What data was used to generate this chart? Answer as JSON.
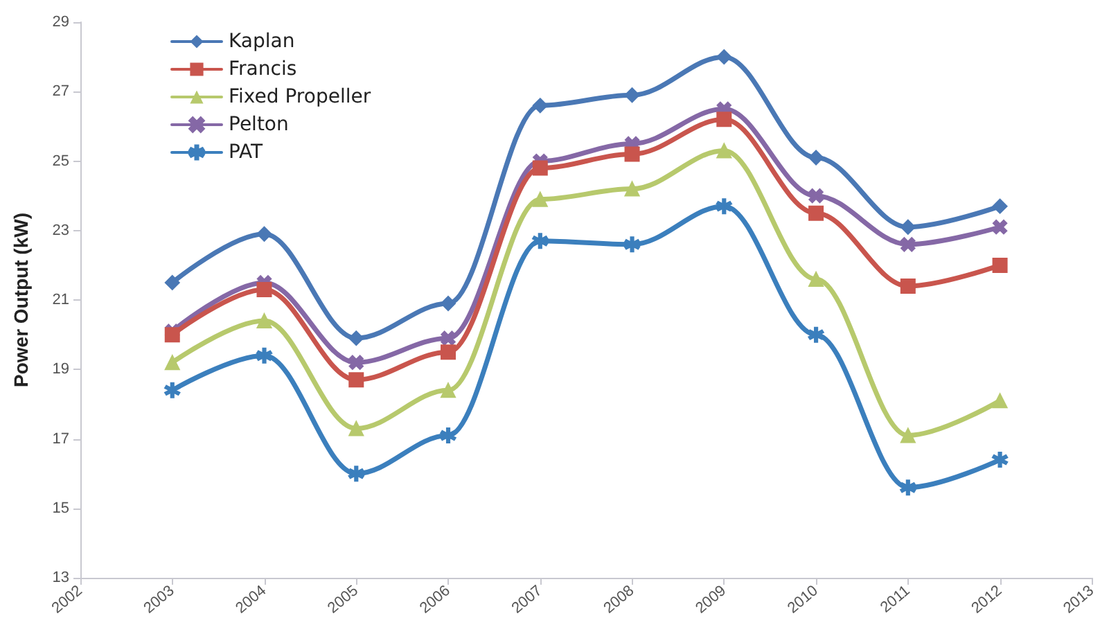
{
  "chart_data": {
    "type": "line",
    "ylabel": "Power Output (kW)",
    "x": [
      2003,
      2004,
      2005,
      2006,
      2007,
      2008,
      2009,
      2010,
      2011,
      2012
    ],
    "xlim": [
      2002,
      2013
    ],
    "xticks": [
      2002,
      2003,
      2004,
      2005,
      2006,
      2007,
      2008,
      2009,
      2010,
      2011,
      2012,
      2013
    ],
    "ylim": [
      13,
      29
    ],
    "yticks": [
      13,
      15,
      17,
      19,
      21,
      23,
      25,
      27,
      29
    ],
    "grid": false,
    "legend": "top left",
    "series": [
      {
        "name": "Kaplan",
        "color": "#4a78b5",
        "marker": "diamond",
        "values": [
          21.5,
          22.9,
          19.9,
          20.9,
          26.6,
          26.9,
          28.0,
          25.1,
          23.1,
          23.7
        ]
      },
      {
        "name": "Francis",
        "color": "#c9554d",
        "marker": "square",
        "values": [
          20.0,
          21.3,
          18.7,
          19.5,
          24.8,
          25.2,
          26.2,
          23.5,
          21.4,
          22.0
        ]
      },
      {
        "name": "Fixed Propeller",
        "color": "#b7c96c",
        "marker": "triangle",
        "values": [
          19.2,
          20.4,
          17.3,
          18.4,
          23.9,
          24.2,
          25.3,
          21.6,
          17.1,
          18.1
        ]
      },
      {
        "name": "Pelton",
        "color": "#8568a6",
        "marker": "cross",
        "values": [
          20.1,
          21.5,
          19.2,
          19.9,
          25.0,
          25.5,
          26.5,
          24.0,
          22.6,
          23.1
        ]
      },
      {
        "name": "PAT",
        "color": "#3b7fbd",
        "marker": "star",
        "values": [
          18.4,
          19.4,
          16.0,
          17.1,
          22.7,
          22.6,
          23.7,
          20.0,
          15.6,
          16.4
        ]
      }
    ]
  }
}
